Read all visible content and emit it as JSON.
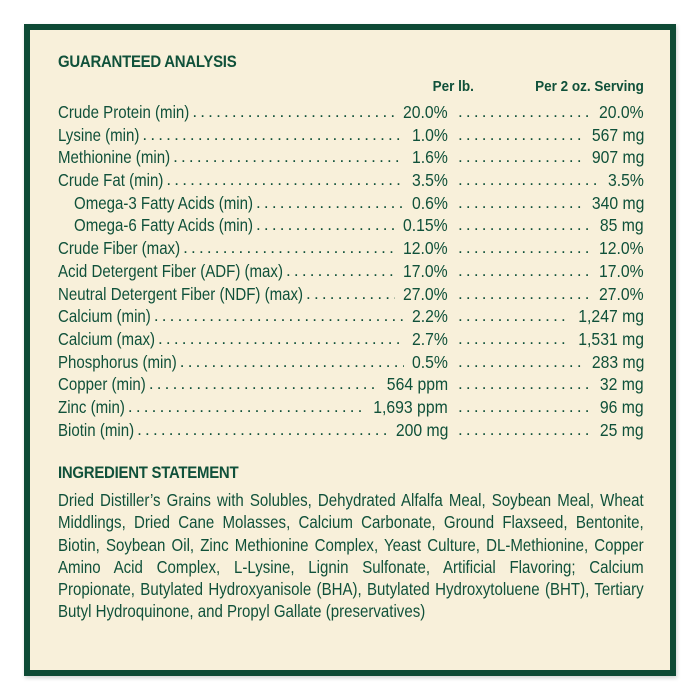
{
  "guaranteed_analysis": {
    "title": "GUARANTEED ANALYSIS",
    "columns": {
      "per_lb": "Per lb.",
      "per_serving": "Per 2 oz. Serving"
    },
    "rows": [
      {
        "label": "Crude Protein (min)",
        "per_lb": "20.0%",
        "per_serving": "20.0%",
        "indent": false
      },
      {
        "label": "Lysine (min)",
        "per_lb": "1.0%",
        "per_serving": "567 mg",
        "indent": false
      },
      {
        "label": "Methionine (min)",
        "per_lb": "1.6%",
        "per_serving": "907 mg",
        "indent": false
      },
      {
        "label": "Crude Fat (min)",
        "per_lb": "3.5%",
        "per_serving": "3.5%",
        "indent": false
      },
      {
        "label": "Omega-3 Fatty Acids (min)",
        "per_lb": "0.6%",
        "per_serving": "340 mg",
        "indent": true
      },
      {
        "label": "Omega-6 Fatty Acids (min)",
        "per_lb": "0.15%",
        "per_serving": "85 mg",
        "indent": true
      },
      {
        "label": "Crude Fiber (max)",
        "per_lb": "12.0%",
        "per_serving": "12.0%",
        "indent": false
      },
      {
        "label": "Acid Detergent Fiber (ADF) (max)",
        "per_lb": "17.0%",
        "per_serving": "17.0%",
        "indent": false
      },
      {
        "label": "Neutral Detergent Fiber (NDF) (max)",
        "per_lb": "27.0%",
        "per_serving": "27.0%",
        "indent": false
      },
      {
        "label": "Calcium (min)",
        "per_lb": "2.2%",
        "per_serving": "1,247 mg",
        "indent": false
      },
      {
        "label": "Calcium (max)",
        "per_lb": "2.7%",
        "per_serving": "1,531 mg",
        "indent": false
      },
      {
        "label": "Phosphorus (min)",
        "per_lb": "0.5%",
        "per_serving": "283 mg",
        "indent": false
      },
      {
        "label": "Copper (min)",
        "per_lb": "564 ppm",
        "per_serving": "32 mg",
        "indent": false
      },
      {
        "label": "Zinc (min)",
        "per_lb": "1,693 ppm",
        "per_serving": "96 mg",
        "indent": false
      },
      {
        "label": "Biotin (min)",
        "per_lb": "200 mg",
        "per_serving": "25 mg",
        "indent": false
      }
    ]
  },
  "ingredient_statement": {
    "title": "INGREDIENT STATEMENT",
    "text": "Dried Distiller’s Grains with Solubles, Dehydrated Alfalfa Meal, Soybean Meal, Wheat Middlings, Dried Cane Molasses, Calcium Carbonate, Ground Flaxseed, Bentonite, Biotin, Soybean Oil, Zinc Methionine Complex, Yeast Culture, DL-Methionine, Copper Amino Acid Complex, L-Lysine, Lignin Sulfonate, Artificial Flavoring; Calcium Propionate, Butylated Hydroxyanisole (BHA), Butylated Hydroxytoluene (BHT), Tertiary Butyl Hydroquinone, and Propyl Gallate (preservatives)"
  },
  "colors": {
    "border": "#0e4a35",
    "text": "#10513a",
    "background": "#f8f0da"
  }
}
